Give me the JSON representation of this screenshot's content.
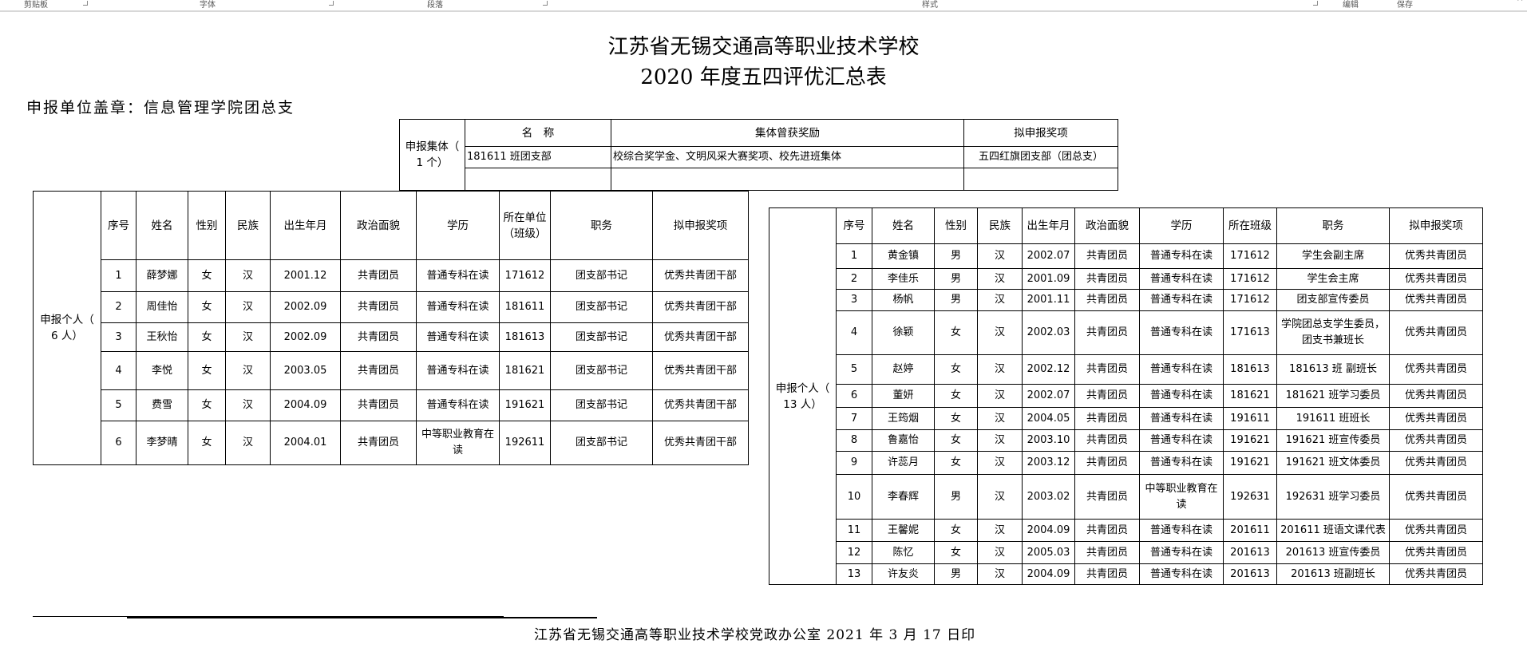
{
  "ribbon": {
    "groups": [
      "剪贴板",
      "字体",
      "段落",
      "样式",
      "编辑",
      "保存"
    ]
  },
  "doc": {
    "title_line1": "江苏省无锡交通高等职业技术学校",
    "title_line2": "2020 年度五四评优汇总表",
    "unit_label": "申报单位盖章：信息管理学院团总支",
    "footer": "江苏省无锡交通高等职业技术学校党政办公室   2021 年 3 月 17 日印"
  },
  "collective": {
    "side_label": "申报集体（ 1 个）",
    "headers": [
      "名　称",
      "集体曾获奖励",
      "拟申报奖项"
    ],
    "rows": [
      [
        "181611 班团支部",
        "校综合奖学金、文明风采大赛奖项、校先进班集体",
        "五四红旗团支部（团总支）"
      ],
      [
        "",
        "",
        ""
      ]
    ]
  },
  "individual_left": {
    "side_label": "申报个人（ 6 人）",
    "headers": [
      "序号",
      "姓名",
      "性别",
      "民族",
      "出生年月",
      "政治面貌",
      "学历",
      "所在单位（班级）",
      "职务",
      "拟申报奖项"
    ],
    "rows": [
      [
        "1",
        "薛梦娜",
        "女",
        "汉",
        "2001.12",
        "共青团员",
        "普通专科在读",
        "171612",
        "团支部书记",
        "优秀共青团干部"
      ],
      [
        "2",
        "周佳怡",
        "女",
        "汉",
        "2002.09",
        "共青团员",
        "普通专科在读",
        "181611",
        "团支部书记",
        "优秀共青团干部"
      ],
      [
        "3",
        "王秋怡",
        "女",
        "汉",
        "2002.09",
        "共青团员",
        "普通专科在读",
        "181613",
        "团支部书记",
        "优秀共青团干部"
      ],
      [
        "4",
        "李悦",
        "女",
        "汉",
        "2003.05",
        "共青团员",
        "普通专科在读",
        "181621",
        "团支部书记",
        "优秀共青团干部"
      ],
      [
        "5",
        "费雪",
        "女",
        "汉",
        "2004.09",
        "共青团员",
        "普通专科在读",
        "191621",
        "团支部书记",
        "优秀共青团干部"
      ],
      [
        "6",
        "李梦晴",
        "女",
        "汉",
        "2004.01",
        "共青团员",
        "中等职业教育在读",
        "192611",
        "团支部书记",
        "优秀共青团干部"
      ]
    ]
  },
  "individual_right": {
    "side_label": "申报个人（ 13 人）",
    "headers": [
      "序号",
      "姓名",
      "性别",
      "民族",
      "出生年月",
      "政治面貌",
      "学历",
      "所在班级",
      "职务",
      "拟申报奖项"
    ],
    "rows": [
      [
        "1",
        "黄金镇",
        "男",
        "汉",
        "2002.07",
        "共青团员",
        "普通专科在读",
        "171612",
        "学生会副主席",
        "优秀共青团员"
      ],
      [
        "2",
        "李佳乐",
        "男",
        "汉",
        "2001.09",
        "共青团员",
        "普通专科在读",
        "171612",
        "学生会主席",
        "优秀共青团员"
      ],
      [
        "3",
        "杨帆",
        "男",
        "汉",
        "2001.11",
        "共青团员",
        "普通专科在读",
        "171612",
        "团支部宣传委员",
        "优秀共青团员"
      ],
      [
        "4",
        "徐颖",
        "女",
        "汉",
        "2002.03",
        "共青团员",
        "普通专科在读",
        "171613",
        "学院团总支学生委员，团支书兼班长",
        "优秀共青团员"
      ],
      [
        "5",
        "赵婷",
        "女",
        "汉",
        "2002.12",
        "共青团员",
        "普通专科在读",
        "181613",
        "181613 班 副班长",
        "优秀共青团员"
      ],
      [
        "6",
        "董妍",
        "女",
        "汉",
        "2002.07",
        "共青团员",
        "普通专科在读",
        "181621",
        "181621 班学习委员",
        "优秀共青团员"
      ],
      [
        "7",
        "王筠烟",
        "女",
        "汉",
        "2004.05",
        "共青团员",
        "普通专科在读",
        "191611",
        "191611 班班长",
        "优秀共青团员"
      ],
      [
        "8",
        "鲁嘉怡",
        "女",
        "汉",
        "2003.10",
        "共青团员",
        "普通专科在读",
        "191621",
        "191621 班宣传委员",
        "优秀共青团员"
      ],
      [
        "9",
        "许蕊月",
        "女",
        "汉",
        "2003.12",
        "共青团员",
        "普通专科在读",
        "191621",
        "191621 班文体委员",
        "优秀共青团员"
      ],
      [
        "10",
        "李春辉",
        "男",
        "汉",
        "2003.02",
        "共青团员",
        "中等职业教育在读",
        "192631",
        "192631 班学习委员",
        "优秀共青团员"
      ],
      [
        "11",
        "王馨妮",
        "女",
        "汉",
        "2004.09",
        "共青团员",
        "普通专科在读",
        "201611",
        "201611 班语文课代表",
        "优秀共青团员"
      ],
      [
        "12",
        "陈忆",
        "女",
        "汉",
        "2005.03",
        "共青团员",
        "普通专科在读",
        "201613",
        "201613 班宣传委员",
        "优秀共青团员"
      ],
      [
        "13",
        "许友炎",
        "男",
        "汉",
        "2004.09",
        "共青团员",
        "普通专科在读",
        "201613",
        "201613 班副班长",
        "优秀共青团员"
      ]
    ]
  }
}
